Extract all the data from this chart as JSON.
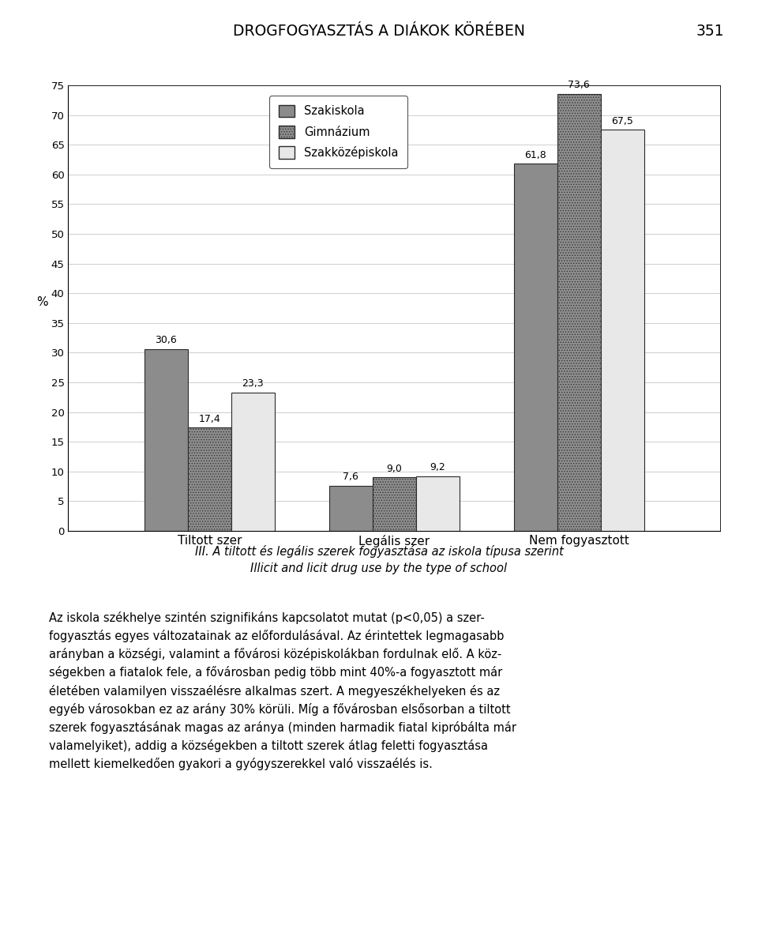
{
  "title_header": "DROGFOGYASZTÁS A DIÁKOK KÖRÉBEN",
  "page_number": "351",
  "categories": [
    "Tiltott szer",
    "Legális szer",
    "Nem fogyasztott"
  ],
  "series": [
    {
      "name": "Szakiskola",
      "values": [
        30.6,
        7.6,
        61.8
      ]
    },
    {
      "name": "Gimnázium",
      "values": [
        17.4,
        9.0,
        73.6
      ]
    },
    {
      "name": "Szakközépiskola",
      "values": [
        23.3,
        9.2,
        67.5
      ]
    }
  ],
  "ylabel": "%",
  "ylim": [
    0,
    75
  ],
  "yticks": [
    0,
    5,
    10,
    15,
    20,
    25,
    30,
    35,
    40,
    45,
    50,
    55,
    60,
    65,
    70,
    75
  ],
  "bar_colors": [
    "#8c8c8c",
    "#8c8c8c",
    "#e8e8e8"
  ],
  "bar_hatches": [
    "",
    ".....",
    ""
  ],
  "bar_edgecolors": [
    "#2a2a2a",
    "#2a2a2a",
    "#2a2a2a"
  ],
  "caption_line1": "III. A tiltott és legális szerek fogyasztása az iskola típusa szerint",
  "caption_line2": "Illicit and licit drug use by the type of school",
  "body_lines": [
    "Az iskola székhelye szintén szignifikáns kapcsolatot mutat (p<0,05) a szer-",
    "fogyasztás egyes változatainak az előfordulásával. Az érintettek legmagasabb",
    "arányban a községi, valamint a fővárosi középiskolákban fordulnak elő. A köz-",
    "ségekben a fiatalok fele, a fővárosban pedig több mint 40%-a fogyasztott már",
    "életében valamilyen visszaélésre alkalmas szert. A megyeszékhelyeken és az",
    "egyéb városokban ez az arány 30% körüli. Míg a fővárosban elsősorban a tiltott",
    "szerek fogyasztásának magas az aránya (minden harmadik fiatal kipróbálta már",
    "valamelyiket), addig a községekben a tiltott szerek átlag feletti fogyasztása",
    "mellett kiemelkedően gyakori a gyógyszerekkel való visszaélés is."
  ],
  "legend_labels": [
    "Szakiskola",
    "Gimnázium",
    "Szakközépiskola"
  ],
  "bar_width": 0.2,
  "group_positions": [
    0.25,
    1.1,
    1.95
  ],
  "value_labels": [
    [
      "30,6",
      "7,6",
      "61,8"
    ],
    [
      "17,4",
      "9,0",
      "73,6"
    ],
    [
      "23,3",
      "9,2",
      "67,5"
    ]
  ]
}
